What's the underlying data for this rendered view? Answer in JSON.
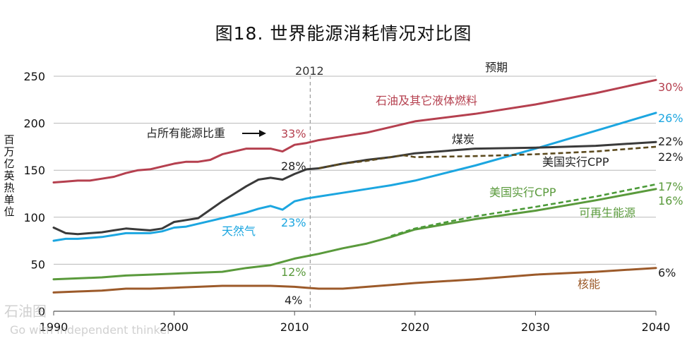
{
  "title": "图18. 世界能源消耗情况对比图",
  "watermark": {
    "logo": "石油图",
    "slogan": "Go with independent thinker"
  },
  "chart_data": {
    "type": "line",
    "title": "图18. 世界能源消耗情况对比图",
    "ylabel": "百万亿英热单位",
    "xlabel": "",
    "xlim": [
      1990,
      2040
    ],
    "ylim": [
      0,
      250
    ],
    "xticks": [
      1990,
      2000,
      2010,
      2020,
      2030,
      2040
    ],
    "yticks": [
      0,
      50,
      100,
      150,
      200,
      250
    ],
    "grid": "horizontal",
    "divider": {
      "x": 2011.3,
      "label": "2012"
    },
    "forecast_label": "预期",
    "share_header": "占所有能源比重",
    "colors": {
      "oil": "#b5404f",
      "coal": "#3a3a3a",
      "gas": "#1ca6e0",
      "renewables": "#5a9a3c",
      "nuclear": "#9c5a2a",
      "coal_cpp": "#5c4a1e",
      "renew_cpp": "#4b9a38",
      "text": "#222222"
    },
    "series": [
      {
        "key": "oil",
        "name": "石油及其它液体燃料",
        "x": [
          1990,
          1991,
          1992,
          1993,
          1994,
          1995,
          1996,
          1997,
          1998,
          1999,
          2000,
          2001,
          2002,
          2003,
          2004,
          2005,
          2006,
          2007,
          2008,
          2009,
          2010,
          2011,
          2012,
          2014,
          2016,
          2018,
          2020,
          2025,
          2030,
          2035,
          2040
        ],
        "y": [
          137,
          138,
          139,
          139,
          141,
          143,
          147,
          150,
          151,
          154,
          157,
          159,
          159,
          161,
          167,
          170,
          173,
          173,
          173,
          170,
          177,
          179,
          182,
          186,
          190,
          196,
          202,
          210,
          220,
          232,
          246
        ],
        "share_2012": "33%",
        "share_2040": "30%"
      },
      {
        "key": "coal",
        "name": "煤炭",
        "x": [
          1990,
          1991,
          1992,
          1993,
          1994,
          1995,
          1996,
          1997,
          1998,
          1999,
          2000,
          2001,
          2002,
          2003,
          2004,
          2005,
          2006,
          2007,
          2008,
          2009,
          2010,
          2011,
          2012,
          2014,
          2016,
          2018,
          2020,
          2025,
          2030,
          2035,
          2040
        ],
        "y": [
          89,
          83,
          82,
          83,
          84,
          86,
          88,
          87,
          86,
          88,
          95,
          97,
          99,
          108,
          117,
          125,
          133,
          140,
          142,
          140,
          146,
          151,
          152,
          157,
          161,
          164,
          168,
          173,
          174,
          176,
          180
        ],
        "share_2012": "28%",
        "share_2040": "22%"
      },
      {
        "key": "coal_cpp",
        "name": "美国实行CPP",
        "style": "dashed",
        "x": [
          2012,
          2014,
          2016,
          2018,
          2019,
          2020,
          2025,
          2030,
          2035,
          2040
        ],
        "y": [
          152,
          157,
          160,
          164,
          166,
          164,
          165,
          167,
          170,
          175
        ],
        "share_2040": "22%"
      },
      {
        "key": "gas",
        "name": "天然气",
        "x": [
          1990,
          1991,
          1992,
          1993,
          1994,
          1995,
          1996,
          1997,
          1998,
          1999,
          2000,
          2001,
          2002,
          2003,
          2004,
          2005,
          2006,
          2007,
          2008,
          2009,
          2010,
          2011,
          2012,
          2014,
          2016,
          2018,
          2020,
          2025,
          2030,
          2035,
          2040
        ],
        "y": [
          75,
          77,
          77,
          78,
          79,
          81,
          83,
          83,
          83,
          85,
          89,
          90,
          93,
          96,
          99,
          102,
          105,
          109,
          112,
          108,
          117,
          120,
          122,
          126,
          130,
          134,
          139,
          155,
          173,
          192,
          211
        ],
        "share_2012": "23%",
        "share_2040": "26%"
      },
      {
        "key": "renewables",
        "name": "可再生能源",
        "x": [
          1990,
          1992,
          1994,
          1996,
          1998,
          2000,
          2002,
          2004,
          2006,
          2008,
          2010,
          2012,
          2014,
          2016,
          2018,
          2020,
          2025,
          2030,
          2035,
          2040
        ],
        "y": [
          34,
          35,
          36,
          38,
          39,
          40,
          41,
          42,
          46,
          49,
          56,
          61,
          67,
          72,
          79,
          87,
          98,
          107,
          118,
          130
        ],
        "share_2012": "12%",
        "share_2040": "16%"
      },
      {
        "key": "renew_cpp",
        "name": "美国实行CPP",
        "style": "dashed",
        "x": [
          2018,
          2020,
          2025,
          2030,
          2035,
          2040
        ],
        "y": [
          80,
          88,
          101,
          111,
          122,
          135
        ],
        "share_2040": "17%"
      },
      {
        "key": "nuclear",
        "name": "核能",
        "x": [
          1990,
          1992,
          1994,
          1996,
          1998,
          2000,
          2002,
          2004,
          2006,
          2008,
          2010,
          2011,
          2012,
          2014,
          2016,
          2018,
          2020,
          2025,
          2030,
          2035,
          2040
        ],
        "y": [
          20,
          21,
          22,
          24,
          24,
          25,
          26,
          27,
          27,
          27,
          26,
          25,
          24,
          24,
          26,
          28,
          30,
          34,
          39,
          42,
          46
        ],
        "share_2012": "4%",
        "share_2040": "6%"
      }
    ]
  }
}
